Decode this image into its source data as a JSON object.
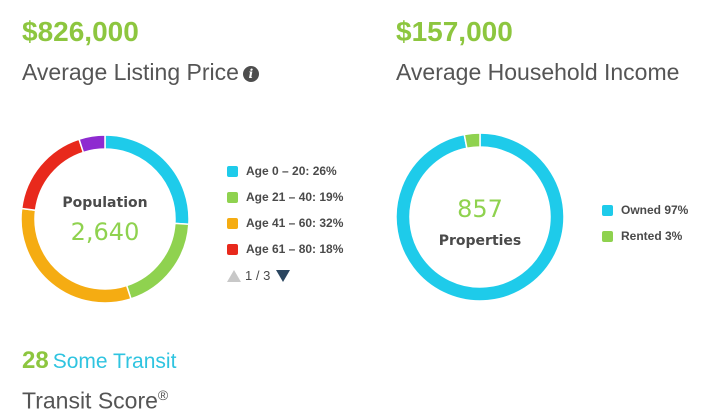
{
  "listing": {
    "value": "$826,000",
    "label": "Average Listing Price",
    "info_icon": "info-icon"
  },
  "income": {
    "value": "$157,000",
    "label": "Average Household Income"
  },
  "population": {
    "title": "Population",
    "value": "2,640",
    "legend": [
      {
        "label": "Age 0 – 20: 26%",
        "color": "#1ecbea"
      },
      {
        "label": "Age 21 – 40: 19%",
        "color": "#8fd24f"
      },
      {
        "label": "Age 41 – 60: 32%",
        "color": "#f5ac12"
      },
      {
        "label": "Age 61 – 80: 18%",
        "color": "#e8291c"
      }
    ],
    "pager": "1 / 3"
  },
  "properties": {
    "value": "857",
    "label": "Properties",
    "legend": [
      {
        "label": "Owned 97%",
        "color": "#1ecbea"
      },
      {
        "label": "Rented 3%",
        "color": "#8fd24f"
      }
    ]
  },
  "transit": {
    "score": "28",
    "description": "Some Transit",
    "label": "Transit Score",
    "mark": "®"
  },
  "chart_data": [
    {
      "type": "pie",
      "categories": [
        "Age 0 – 20",
        "Age 21 – 40",
        "Age 41 – 60",
        "Age 61 – 80",
        "Other"
      ],
      "values": [
        26,
        19,
        32,
        18,
        5
      ],
      "colors": [
        "#1ecbea",
        "#8fd24f",
        "#f5ac12",
        "#e8291c",
        "#8e2bd0"
      ]
    },
    {
      "type": "pie",
      "categories": [
        "Owned",
        "Rented"
      ],
      "values": [
        97,
        3
      ],
      "colors": [
        "#1ecbea",
        "#8fd24f"
      ]
    }
  ]
}
